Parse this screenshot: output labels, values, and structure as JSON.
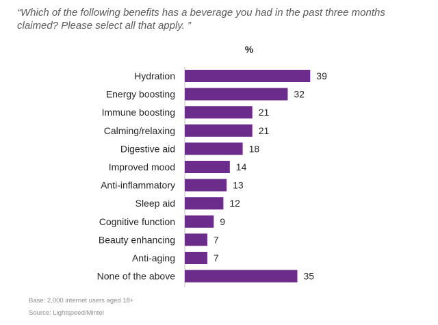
{
  "question": "“Which of the following benefits has a beverage you had in the past three months claimed? Please select all that apply. ”",
  "chart_data": {
    "type": "bar",
    "orientation": "horizontal",
    "title": "%",
    "xlabel": "",
    "ylabel": "",
    "xlim": [
      0,
      39
    ],
    "grid": false,
    "legend": "none",
    "bar_color": "#6b2c8c",
    "categories": [
      "Hydration",
      "Energy boosting",
      "Immune boosting",
      "Calming/relaxing",
      "Digestive aid",
      "Improved mood",
      "Anti-inflammatory",
      "Sleep aid",
      "Cognitive function",
      "Beauty enhancing",
      "Anti-aging",
      "None of the above"
    ],
    "values": [
      39,
      32,
      21,
      21,
      18,
      14,
      13,
      12,
      9,
      7,
      7,
      35
    ]
  },
  "footnotes": {
    "base": "Base: 2,000 internet users aged 18+",
    "source": "Source: Lightspeed/Mintel"
  }
}
